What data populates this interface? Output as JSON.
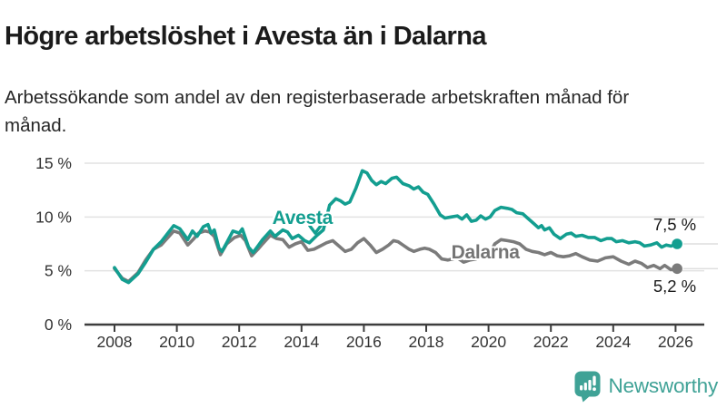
{
  "page": {
    "title": "Högre arbetslöshet i Avesta än i Dalarna",
    "subtitle": "Arbetssökande som andel av den registerbaserade arbetskraften månad för månad."
  },
  "branding": {
    "logo_text": "Newsworthy",
    "logo_icon": "newsworthy-chart-bubble-icon",
    "brand_color": "#3fa296"
  },
  "colors": {
    "avesta_line": "#139e90",
    "dalarna_line": "#7b7b7b",
    "dalarna_label": "#757575",
    "grid": "#e2e2e2",
    "leader": "#dddddd",
    "axis": "#3d3d3d",
    "tick_text": "#333333",
    "value_text": "#1a1a1a"
  },
  "chart_data": {
    "type": "line",
    "x_unit": "year",
    "y_unit": "percent",
    "xlim": [
      2008,
      2026.4
    ],
    "ylim": [
      0,
      15
    ],
    "grid": true,
    "yticks": [
      {
        "value": 0,
        "label": "0 %"
      },
      {
        "value": 5,
        "label": "5 %"
      },
      {
        "value": 10,
        "label": "10 %"
      },
      {
        "value": 15,
        "label": "15 %"
      }
    ],
    "xticks": [
      {
        "value": 2008,
        "label": "2008"
      },
      {
        "value": 2010,
        "label": "2010"
      },
      {
        "value": 2012,
        "label": "2012"
      },
      {
        "value": 2014,
        "label": "2014"
      },
      {
        "value": 2016,
        "label": "2016"
      },
      {
        "value": 2018,
        "label": "2018"
      },
      {
        "value": 2020,
        "label": "2020"
      },
      {
        "value": 2022,
        "label": "2022"
      },
      {
        "value": 2024,
        "label": "2024"
      },
      {
        "value": 2026,
        "label": "2026"
      }
    ],
    "series": [
      {
        "name": "Dalarna",
        "color": "#7b7b7b",
        "end_label": "5,2 %",
        "end_label_position": "below",
        "points": [
          [
            2008.0,
            5.2
          ],
          [
            2008.25,
            4.3
          ],
          [
            2008.45,
            4.0
          ],
          [
            2008.75,
            4.8
          ],
          [
            2009.0,
            6.0
          ],
          [
            2009.25,
            7.0
          ],
          [
            2009.5,
            7.4
          ],
          [
            2009.9,
            8.7
          ],
          [
            2010.1,
            8.5
          ],
          [
            2010.35,
            7.4
          ],
          [
            2010.55,
            8.0
          ],
          [
            2010.7,
            8.5
          ],
          [
            2010.9,
            8.7
          ],
          [
            2011.05,
            8.6
          ],
          [
            2011.2,
            8.2
          ],
          [
            2011.4,
            6.5
          ],
          [
            2011.6,
            7.5
          ],
          [
            2011.85,
            8.1
          ],
          [
            2012.05,
            8.3
          ],
          [
            2012.2,
            7.8
          ],
          [
            2012.4,
            6.4
          ],
          [
            2012.6,
            7.0
          ],
          [
            2012.75,
            7.5
          ],
          [
            2013.0,
            8.3
          ],
          [
            2013.2,
            8.0
          ],
          [
            2013.4,
            7.9
          ],
          [
            2013.6,
            7.2
          ],
          [
            2013.8,
            7.5
          ],
          [
            2014.0,
            7.7
          ],
          [
            2014.2,
            6.9
          ],
          [
            2014.4,
            7.0
          ],
          [
            2014.6,
            7.3
          ],
          [
            2014.8,
            7.6
          ],
          [
            2015.0,
            7.8
          ],
          [
            2015.2,
            7.3
          ],
          [
            2015.4,
            6.8
          ],
          [
            2015.6,
            7.0
          ],
          [
            2015.8,
            7.6
          ],
          [
            2016.0,
            8.0
          ],
          [
            2016.2,
            7.4
          ],
          [
            2016.4,
            6.7
          ],
          [
            2016.6,
            7.0
          ],
          [
            2016.8,
            7.4
          ],
          [
            2016.95,
            7.8
          ],
          [
            2017.1,
            7.7
          ],
          [
            2017.25,
            7.4
          ],
          [
            2017.45,
            7.0
          ],
          [
            2017.6,
            6.8
          ],
          [
            2017.8,
            7.0
          ],
          [
            2017.95,
            7.1
          ],
          [
            2018.1,
            7.0
          ],
          [
            2018.3,
            6.7
          ],
          [
            2018.5,
            6.1
          ],
          [
            2018.7,
            6.0
          ],
          [
            2018.85,
            6.1
          ],
          [
            2019.0,
            6.2
          ],
          [
            2019.2,
            5.8
          ],
          [
            2019.4,
            6.0
          ],
          [
            2019.6,
            6.1
          ],
          [
            2019.8,
            6.3
          ],
          [
            2020.0,
            6.4
          ],
          [
            2020.2,
            7.5
          ],
          [
            2020.4,
            7.9
          ],
          [
            2020.6,
            7.8
          ],
          [
            2020.8,
            7.7
          ],
          [
            2021.0,
            7.5
          ],
          [
            2021.2,
            7.0
          ],
          [
            2021.4,
            6.8
          ],
          [
            2021.6,
            6.7
          ],
          [
            2021.8,
            6.5
          ],
          [
            2022.0,
            6.7
          ],
          [
            2022.2,
            6.4
          ],
          [
            2022.4,
            6.3
          ],
          [
            2022.6,
            6.4
          ],
          [
            2022.8,
            6.6
          ],
          [
            2023.0,
            6.3
          ],
          [
            2023.25,
            6.0
          ],
          [
            2023.5,
            5.9
          ],
          [
            2023.75,
            6.2
          ],
          [
            2024.0,
            6.3
          ],
          [
            2024.25,
            5.9
          ],
          [
            2024.5,
            5.6
          ],
          [
            2024.7,
            5.9
          ],
          [
            2024.9,
            5.7
          ],
          [
            2025.1,
            5.3
          ],
          [
            2025.3,
            5.5
          ],
          [
            2025.5,
            5.2
          ],
          [
            2025.65,
            5.5
          ],
          [
            2025.85,
            5.1
          ],
          [
            2026.05,
            5.2
          ]
        ]
      },
      {
        "name": "Avesta",
        "color": "#139e90",
        "end_label": "7,5 %",
        "end_label_position": "above",
        "points": [
          [
            2008.0,
            5.3
          ],
          [
            2008.25,
            4.2
          ],
          [
            2008.45,
            3.9
          ],
          [
            2008.75,
            4.7
          ],
          [
            2009.0,
            5.8
          ],
          [
            2009.25,
            7.0
          ],
          [
            2009.5,
            7.7
          ],
          [
            2009.9,
            9.2
          ],
          [
            2010.1,
            8.9
          ],
          [
            2010.35,
            7.9
          ],
          [
            2010.5,
            8.7
          ],
          [
            2010.65,
            8.2
          ],
          [
            2010.85,
            9.1
          ],
          [
            2011.0,
            9.3
          ],
          [
            2011.1,
            8.5
          ],
          [
            2011.2,
            8.8
          ],
          [
            2011.35,
            7.1
          ],
          [
            2011.45,
            6.8
          ],
          [
            2011.6,
            7.6
          ],
          [
            2011.8,
            8.7
          ],
          [
            2012.0,
            8.5
          ],
          [
            2012.1,
            8.9
          ],
          [
            2012.3,
            7.2
          ],
          [
            2012.45,
            6.7
          ],
          [
            2012.6,
            7.3
          ],
          [
            2012.75,
            7.9
          ],
          [
            2013.0,
            8.7
          ],
          [
            2013.15,
            8.2
          ],
          [
            2013.4,
            8.8
          ],
          [
            2013.55,
            8.6
          ],
          [
            2013.7,
            8.0
          ],
          [
            2013.9,
            8.3
          ],
          [
            2014.1,
            7.8
          ],
          [
            2014.25,
            7.6
          ],
          [
            2014.5,
            8.3
          ],
          [
            2014.7,
            8.8
          ],
          [
            2014.9,
            11.1
          ],
          [
            2015.1,
            11.7
          ],
          [
            2015.25,
            11.5
          ],
          [
            2015.4,
            11.2
          ],
          [
            2015.55,
            11.4
          ],
          [
            2015.75,
            12.7
          ],
          [
            2015.95,
            14.3
          ],
          [
            2016.1,
            14.1
          ],
          [
            2016.25,
            13.4
          ],
          [
            2016.4,
            13.0
          ],
          [
            2016.55,
            13.3
          ],
          [
            2016.7,
            13.1
          ],
          [
            2016.9,
            13.6
          ],
          [
            2017.05,
            13.7
          ],
          [
            2017.25,
            13.1
          ],
          [
            2017.45,
            12.9
          ],
          [
            2017.6,
            12.6
          ],
          [
            2017.75,
            12.8
          ],
          [
            2017.9,
            12.3
          ],
          [
            2018.05,
            12.1
          ],
          [
            2018.25,
            11.2
          ],
          [
            2018.45,
            10.2
          ],
          [
            2018.6,
            9.9
          ],
          [
            2018.8,
            10.0
          ],
          [
            2019.0,
            10.1
          ],
          [
            2019.15,
            9.8
          ],
          [
            2019.3,
            10.2
          ],
          [
            2019.45,
            9.6
          ],
          [
            2019.6,
            9.7
          ],
          [
            2019.75,
            10.1
          ],
          [
            2019.9,
            9.8
          ],
          [
            2020.05,
            10.0
          ],
          [
            2020.2,
            10.6
          ],
          [
            2020.4,
            10.9
          ],
          [
            2020.6,
            10.8
          ],
          [
            2020.75,
            10.7
          ],
          [
            2020.9,
            10.4
          ],
          [
            2021.1,
            10.3
          ],
          [
            2021.25,
            9.9
          ],
          [
            2021.45,
            9.4
          ],
          [
            2021.6,
            9.0
          ],
          [
            2021.7,
            9.2
          ],
          [
            2021.8,
            8.8
          ],
          [
            2021.95,
            9.0
          ],
          [
            2022.1,
            8.4
          ],
          [
            2022.3,
            8.0
          ],
          [
            2022.5,
            8.4
          ],
          [
            2022.65,
            8.5
          ],
          [
            2022.8,
            8.2
          ],
          [
            2023.0,
            8.3
          ],
          [
            2023.2,
            8.1
          ],
          [
            2023.4,
            8.1
          ],
          [
            2023.6,
            7.8
          ],
          [
            2023.8,
            8.0
          ],
          [
            2023.95,
            8.0
          ],
          [
            2024.1,
            7.7
          ],
          [
            2024.3,
            7.8
          ],
          [
            2024.5,
            7.6
          ],
          [
            2024.7,
            7.7
          ],
          [
            2024.85,
            7.6
          ],
          [
            2025.0,
            7.3
          ],
          [
            2025.2,
            7.4
          ],
          [
            2025.4,
            7.6
          ],
          [
            2025.55,
            7.2
          ],
          [
            2025.7,
            7.4
          ],
          [
            2025.85,
            7.3
          ],
          [
            2026.05,
            7.5
          ]
        ]
      }
    ],
    "annotations": [
      {
        "text": "Avesta",
        "series": "Avesta",
        "x": 2014.03,
        "y": 9.86,
        "color": "#139e90",
        "arrow": {
          "x": 2014.44,
          "y": 8.5,
          "direction": "down"
        }
      },
      {
        "text": "Dalarna",
        "series": "Dalarna",
        "x": 2019.9,
        "y": 6.66,
        "color": "#757575"
      }
    ],
    "legend_position": "inline-annotations"
  }
}
